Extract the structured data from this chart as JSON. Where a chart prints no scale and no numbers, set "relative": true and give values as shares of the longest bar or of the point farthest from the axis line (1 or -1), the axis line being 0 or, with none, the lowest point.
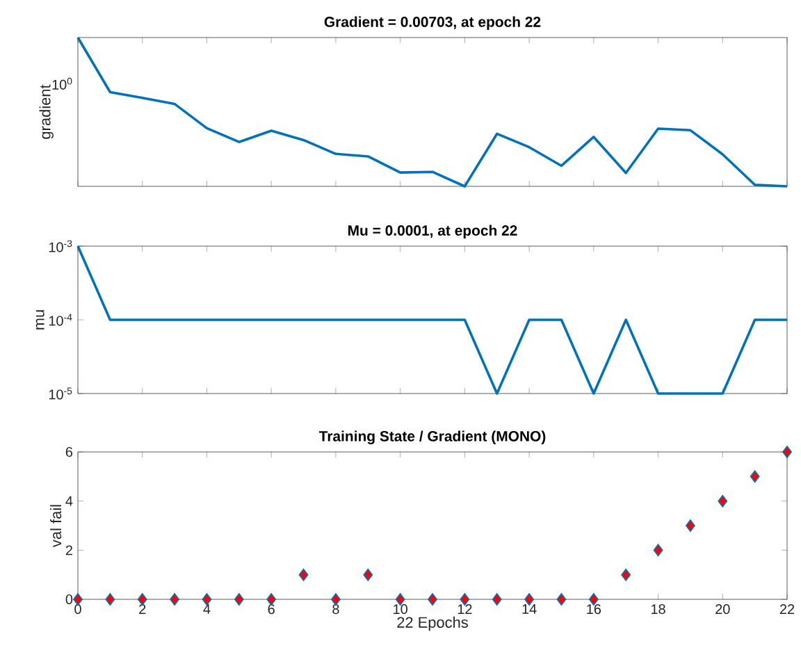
{
  "chart_data": [
    {
      "type": "line",
      "title": "Gradient = 0.00703, at epoch 22",
      "ylabel": "gradient",
      "relative": true,
      "annotations": [
        "10$^{0}$"
      ],
      "x": [
        0,
        1,
        2,
        3,
        4,
        5,
        6,
        7,
        8,
        9,
        10,
        11,
        12,
        13,
        14,
        15,
        16,
        17,
        18,
        19,
        20,
        21,
        22
      ],
      "series": [
        {
          "color": "#0072bd",
          "values": [
            1,
            0.633,
            0.595,
            0.554,
            0.391,
            0.298,
            0.374,
            0.311,
            0.218,
            0.201,
            0.093,
            0.097,
            0,
            0.353,
            0.263,
            0.138,
            0.332,
            0.09,
            0.388,
            0.377,
            0.215,
            0.01,
            0
          ]
        }
      ],
      "xlim": [
        0,
        22
      ],
      "xticks": [
        0,
        2,
        4,
        6,
        8,
        10,
        12,
        14,
        16,
        18,
        20,
        22
      ],
      "tick_labels": false,
      "marker": "none",
      "line_style": "solid"
    },
    {
      "type": "line",
      "title": "Mu = 0.0001, at epoch 22",
      "ylabel": "mu",
      "log": "y",
      "x": [
        0,
        1,
        2,
        3,
        4,
        5,
        6,
        7,
        8,
        9,
        10,
        11,
        12,
        13,
        14,
        15,
        16,
        17,
        18,
        19,
        20,
        21,
        22
      ],
      "series": [
        {
          "color": "#0072bd",
          "values": [
            0.001,
            0.0001,
            0.0001,
            0.0001,
            0.0001,
            0.0001,
            0.0001,
            0.0001,
            0.0001,
            0.0001,
            0.0001,
            0.0001,
            0.0001,
            1e-05,
            0.0001,
            0.0001,
            1e-05,
            0.0001,
            1e-05,
            1e-05,
            1e-05,
            0.0001,
            0.0001
          ]
        }
      ],
      "xlim": [
        0,
        22
      ],
      "xticks": [
        0,
        2,
        4,
        6,
        8,
        10,
        12,
        14,
        16,
        18,
        20,
        22
      ],
      "ylim": [
        1e-05,
        0.001
      ],
      "yticks": [
        {
          "value": 0.001,
          "label": "10$^{-3}$"
        },
        {
          "value": 0.0001,
          "label": "10$^{-4}$"
        },
        {
          "value": 1e-05,
          "label": "10$^{-5}$"
        }
      ],
      "tick_labels": "y",
      "marker": "none",
      "line_style": "solid"
    },
    {
      "type": "scatter",
      "title": "Training State / Gradient (MONO)",
      "xlabel": "22 Epochs",
      "ylabel": "val fail",
      "x": [
        0,
        1,
        2,
        3,
        4,
        5,
        6,
        7,
        8,
        9,
        10,
        11,
        12,
        13,
        14,
        15,
        16,
        17,
        18,
        19,
        20,
        21,
        22
      ],
      "series": [
        {
          "color": "#ff0000",
          "values": [
            0,
            0,
            0,
            0,
            0,
            0,
            0,
            1,
            0,
            1,
            0,
            0,
            0,
            0,
            0,
            0,
            0,
            1,
            2,
            3,
            4,
            5,
            6
          ]
        }
      ],
      "xlim": [
        0,
        22
      ],
      "xticks": [
        0,
        2,
        4,
        6,
        8,
        10,
        12,
        14,
        16,
        18,
        20,
        22
      ],
      "ylim": [
        0,
        6
      ],
      "yticks": [
        0,
        2,
        4,
        6
      ],
      "marker": "diamond"
    }
  ]
}
